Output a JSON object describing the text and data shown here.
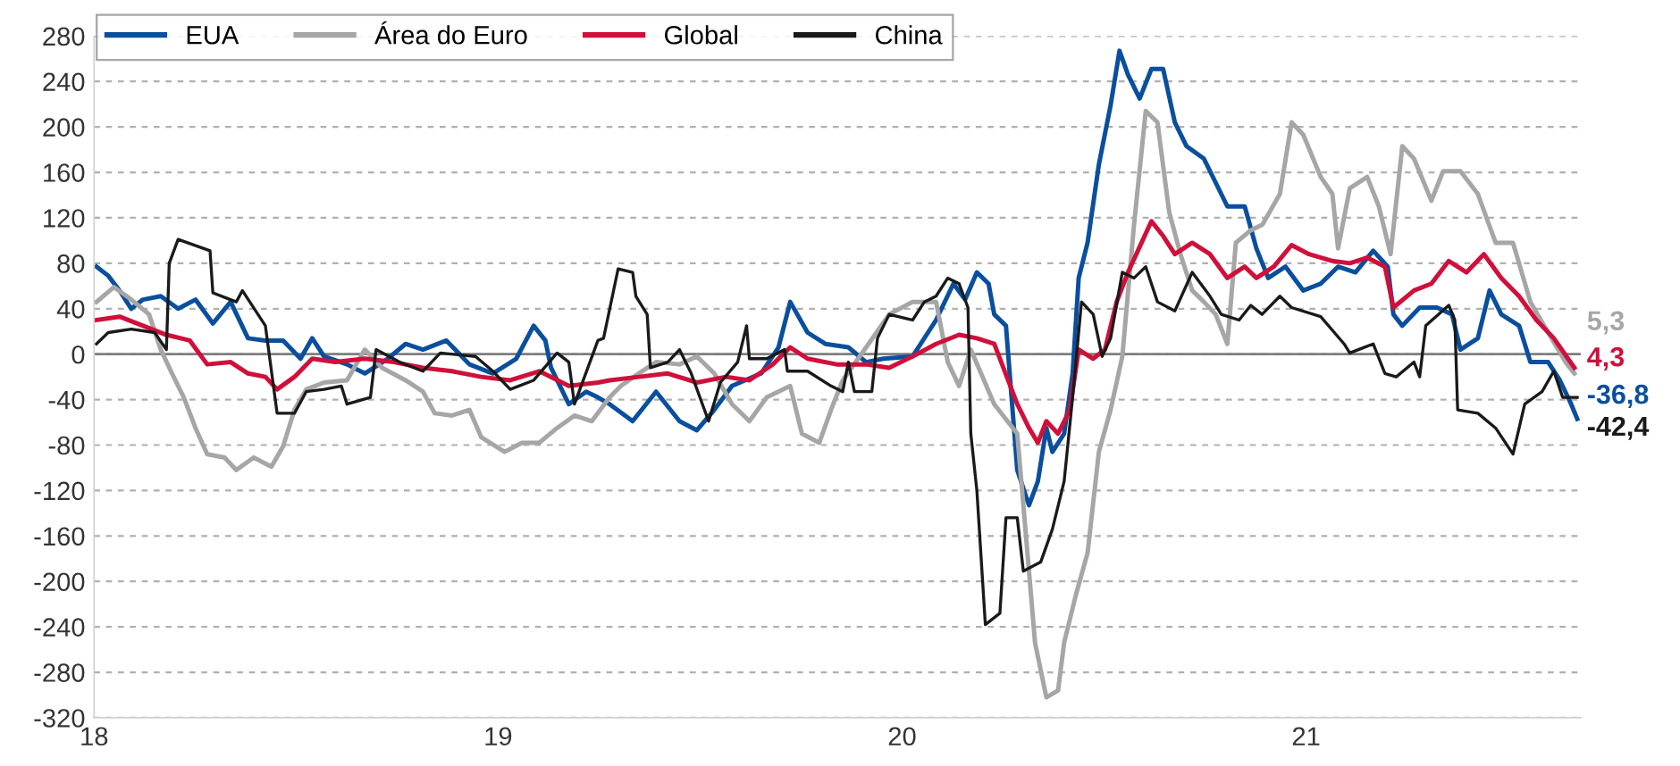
{
  "chart_data": {
    "type": "line",
    "xlim": [
      18,
      21.68
    ],
    "xticks": [
      18,
      19,
      20,
      21
    ],
    "ylim": [
      -320,
      280
    ],
    "yticks": [
      -320,
      -280,
      -240,
      -200,
      -160,
      -120,
      -80,
      -40,
      0,
      40,
      80,
      120,
      160,
      200,
      240,
      280
    ],
    "grid": "y",
    "legend": "top left",
    "marker": "none",
    "line_style": "solid",
    "ref_lines": [
      {
        "axis": "y",
        "value": 0,
        "color": "#7f7f7f",
        "line_style": "solid"
      }
    ],
    "annotations": [
      "-36,8",
      "5,3",
      "4,3",
      "-42,4"
    ],
    "series": [
      {
        "name": "EUA",
        "color": "#0a4f9e",
        "x": [
          18.006,
          18.035,
          18.063,
          18.092,
          18.121,
          18.165,
          18.208,
          18.251,
          18.294,
          18.338,
          18.381,
          18.424,
          18.468,
          18.511,
          18.54,
          18.569,
          18.626,
          18.67,
          18.727,
          18.771,
          18.814,
          18.872,
          18.929,
          18.987,
          19.045,
          19.088,
          19.117,
          19.131,
          19.175,
          19.218,
          19.247,
          19.276,
          19.333,
          19.391,
          19.449,
          19.492,
          19.535,
          19.579,
          19.651,
          19.694,
          19.723,
          19.766,
          19.81,
          19.867,
          19.911,
          19.954,
          20.026,
          20.084,
          20.127,
          20.156,
          20.185,
          20.214,
          20.228,
          20.257,
          20.285,
          20.314,
          20.336,
          20.357,
          20.372,
          20.401,
          20.422,
          20.437,
          20.459,
          20.487,
          20.516,
          20.538,
          20.559,
          20.588,
          20.617,
          20.646,
          20.675,
          20.704,
          20.747,
          20.776,
          20.805,
          20.848,
          20.877,
          20.906,
          20.949,
          20.993,
          21.036,
          21.079,
          21.122,
          21.166,
          21.202,
          21.216,
          21.238,
          21.281,
          21.324,
          21.361,
          21.382,
          21.425,
          21.454,
          21.483,
          21.527,
          21.555,
          21.599,
          21.628,
          21.656,
          21.671
        ],
        "values": [
          77,
          69,
          56,
          40,
          48,
          51,
          40,
          48,
          27,
          46,
          14,
          12,
          12,
          -4,
          14,
          -2,
          -9,
          -17,
          -4,
          9,
          4,
          12,
          -9,
          -17,
          -4,
          25,
          12,
          -12,
          -44,
          -33,
          -38,
          -44,
          -59,
          -33,
          -59,
          -67,
          -49,
          -28,
          -17,
          6,
          46,
          19,
          9,
          6,
          -7,
          -4,
          -2,
          30,
          62,
          48,
          72,
          62,
          35,
          25,
          -102,
          -133,
          -112,
          -65,
          -86,
          -70,
          -17,
          67,
          98,
          167,
          219,
          267,
          246,
          225,
          251,
          251,
          204,
          183,
          172,
          151,
          130,
          130,
          93,
          67,
          77,
          56,
          62,
          77,
          72,
          91,
          77,
          35,
          25,
          41,
          41,
          35,
          4,
          14,
          56,
          35,
          25,
          -7,
          -7,
          -23,
          -44,
          -57
        ]
      },
      {
        "name": "Área do Euro",
        "color": "#a6a6a6",
        "x": [
          18.006,
          18.049,
          18.092,
          18.136,
          18.165,
          18.193,
          18.222,
          18.251,
          18.28,
          18.323,
          18.352,
          18.395,
          18.439,
          18.468,
          18.496,
          18.525,
          18.569,
          18.626,
          18.67,
          18.713,
          18.771,
          18.814,
          18.843,
          18.886,
          18.929,
          18.958,
          19.016,
          19.059,
          19.102,
          19.146,
          19.189,
          19.232,
          19.276,
          19.304,
          19.348,
          19.391,
          19.449,
          19.492,
          19.535,
          19.579,
          19.622,
          19.665,
          19.723,
          19.752,
          19.795,
          19.824,
          19.853,
          19.911,
          19.968,
          20.026,
          20.084,
          20.113,
          20.141,
          20.17,
          20.228,
          20.285,
          20.314,
          20.329,
          20.357,
          20.386,
          20.401,
          20.43,
          20.459,
          20.487,
          20.516,
          20.545,
          20.574,
          20.603,
          20.632,
          20.661,
          20.689,
          20.718,
          20.747,
          20.776,
          20.805,
          20.826,
          20.863,
          20.892,
          20.935,
          20.964,
          20.993,
          21.036,
          21.065,
          21.079,
          21.108,
          21.151,
          21.18,
          21.209,
          21.238,
          21.267,
          21.31,
          21.339,
          21.382,
          21.425,
          21.469,
          21.512,
          21.555,
          21.599,
          21.642,
          21.664
        ],
        "values": [
          46,
          59,
          48,
          35,
          4,
          -17,
          -38,
          -65,
          -88,
          -91,
          -102,
          -91,
          -99,
          -81,
          -49,
          -31,
          -25,
          -23,
          4,
          -12,
          -23,
          -33,
          -52,
          -54,
          -49,
          -73,
          -86,
          -78,
          -78,
          -65,
          -54,
          -59,
          -38,
          -28,
          -17,
          -7,
          -9,
          -2,
          -17,
          -44,
          -59,
          -38,
          -28,
          -70,
          -78,
          -49,
          -23,
          6,
          35,
          46,
          46,
          -7,
          -28,
          4,
          -44,
          -70,
          -191,
          -254,
          -302,
          -296,
          -254,
          -212,
          -175,
          -86,
          -49,
          -2,
          114,
          214,
          204,
          125,
          88,
          56,
          46,
          35,
          9,
          98,
          109,
          114,
          141,
          204,
          193,
          156,
          141,
          93,
          146,
          156,
          130,
          88,
          183,
          172,
          135,
          161,
          161,
          141,
          98,
          98,
          46,
          19,
          -7,
          -17
        ]
      },
      {
        "name": "Global",
        "color": "#d0103a",
        "x": [
          18.006,
          18.063,
          18.121,
          18.179,
          18.237,
          18.28,
          18.338,
          18.381,
          18.424,
          18.453,
          18.496,
          18.54,
          18.597,
          18.67,
          18.742,
          18.814,
          18.886,
          18.958,
          19.03,
          19.102,
          19.175,
          19.247,
          19.276,
          19.348,
          19.42,
          19.492,
          19.564,
          19.622,
          19.68,
          19.723,
          19.766,
          19.838,
          19.911,
          19.968,
          20.026,
          20.084,
          20.141,
          20.185,
          20.228,
          20.285,
          20.314,
          20.336,
          20.357,
          20.386,
          20.415,
          20.437,
          20.473,
          20.502,
          20.531,
          20.559,
          20.617,
          20.646,
          20.675,
          20.718,
          20.762,
          20.805,
          20.848,
          20.877,
          20.92,
          20.964,
          21.007,
          21.065,
          21.108,
          21.151,
          21.195,
          21.216,
          21.267,
          21.31,
          21.353,
          21.397,
          21.44,
          21.483,
          21.527,
          21.57,
          21.613,
          21.664
        ],
        "values": [
          30,
          33,
          25,
          17,
          12,
          -9,
          -7,
          -17,
          -20,
          -31,
          -20,
          -4,
          -7,
          -4,
          -7,
          -12,
          -15,
          -20,
          -23,
          -15,
          -28,
          -25,
          -23,
          -20,
          -17,
          -25,
          -20,
          -23,
          -9,
          6,
          -4,
          -9,
          -9,
          -12,
          -2,
          9,
          17,
          14,
          9,
          -44,
          -65,
          -78,
          -59,
          -70,
          -49,
          4,
          -4,
          4,
          46,
          72,
          117,
          104,
          88,
          98,
          88,
          67,
          77,
          67,
          77,
          96,
          88,
          82,
          80,
          85,
          77,
          41,
          56,
          62,
          82,
          72,
          88,
          67,
          51,
          30,
          14,
          -12
        ]
      },
      {
        "name": "China",
        "color": "#1a1a1a",
        "x": [
          18.006,
          18.035,
          18.092,
          18.15,
          18.179,
          18.186,
          18.208,
          18.287,
          18.294,
          18.352,
          18.367,
          18.424,
          18.453,
          18.496,
          18.525,
          18.569,
          18.612,
          18.626,
          18.684,
          18.698,
          18.756,
          18.814,
          18.857,
          18.944,
          18.987,
          19.03,
          19.088,
          19.146,
          19.175,
          19.189,
          19.247,
          19.261,
          19.297,
          19.333,
          19.341,
          19.369,
          19.377,
          19.42,
          19.449,
          19.478,
          19.521,
          19.55,
          19.593,
          19.615,
          19.622,
          19.665,
          19.709,
          19.716,
          19.766,
          19.824,
          19.853,
          19.867,
          19.882,
          19.925,
          19.939,
          19.968,
          20.026,
          20.055,
          20.084,
          20.113,
          20.141,
          20.163,
          20.17,
          20.185,
          20.206,
          20.242,
          20.257,
          20.285,
          20.3,
          20.343,
          20.372,
          20.401,
          20.422,
          20.444,
          20.473,
          20.495,
          20.516,
          20.545,
          20.574,
          20.603,
          20.632,
          20.675,
          20.718,
          20.762,
          20.79,
          20.834,
          20.863,
          20.891,
          20.935,
          20.964,
          21.036,
          21.094,
          21.108,
          21.166,
          21.195,
          21.223,
          21.267,
          21.281,
          21.296,
          21.353,
          21.368,
          21.375,
          21.425,
          21.469,
          21.512,
          21.541,
          21.584,
          21.613,
          21.635,
          21.671
        ],
        "values": [
          9,
          19,
          22,
          19,
          4,
          80,
          101,
          91,
          54,
          46,
          56,
          25,
          -52,
          -52,
          -33,
          -31,
          -28,
          -44,
          -38,
          4,
          -7,
          -15,
          1,
          -2,
          -15,
          -31,
          -23,
          1,
          -7,
          -44,
          12,
          14,
          75,
          72,
          51,
          35,
          -12,
          -7,
          4,
          -17,
          -59,
          -25,
          -7,
          25,
          -4,
          -4,
          4,
          -15,
          -15,
          -28,
          -33,
          -7,
          -33,
          -33,
          14,
          35,
          30,
          46,
          51,
          67,
          62,
          41,
          -70,
          -120,
          -238,
          -228,
          -144,
          -144,
          -191,
          -183,
          -154,
          -112,
          -38,
          46,
          35,
          -2,
          14,
          72,
          67,
          77,
          46,
          38,
          72,
          51,
          35,
          30,
          43,
          35,
          51,
          41,
          33,
          9,
          1,
          9,
          -17,
          -20,
          -7,
          -20,
          25,
          43,
          30,
          -49,
          -52,
          -65,
          -88,
          -44,
          -33,
          -15,
          -38,
          -38
        ]
      }
    ]
  }
}
